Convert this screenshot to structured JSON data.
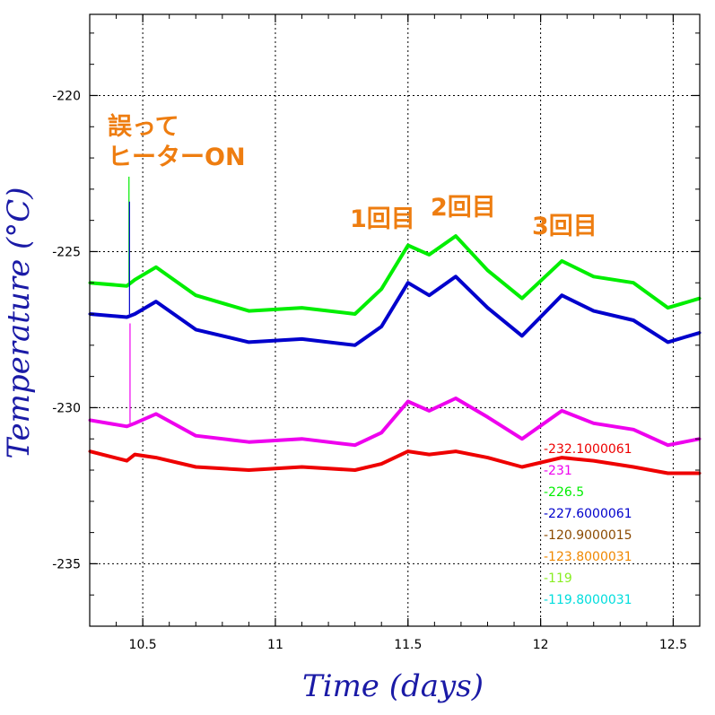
{
  "chart_data": {
    "type": "line",
    "title": "",
    "xlabel": "Time (days)",
    "ylabel": "Temperature (°C)",
    "xlim": [
      10.3,
      12.6
    ],
    "ylim": [
      -237,
      -217.4
    ],
    "xticks": [
      10.5,
      11,
      11.5,
      12,
      12.5
    ],
    "xtick_labels": [
      "10.5",
      "11",
      "11.5",
      "12",
      "12.5"
    ],
    "yticks": [
      -220,
      -225,
      -230,
      -235
    ],
    "ytick_labels": [
      "-220",
      "-225",
      "-230",
      "-235"
    ],
    "grid": true,
    "annotations": [
      {
        "lines": [
          "誤って",
          "ヒーターON"
        ],
        "x": 10.45,
        "y": -222.0
      },
      {
        "lines": [
          "1回目"
        ],
        "x": 11.5,
        "y": -224.0
      },
      {
        "lines": [
          "2回目"
        ],
        "x": 11.75,
        "y": -223.6
      },
      {
        "lines": [
          "3回目"
        ],
        "x": 12.1,
        "y": -224.3
      }
    ],
    "series": [
      {
        "color": "#00ee00",
        "x": [
          10.3,
          10.44,
          10.47,
          10.55,
          10.7,
          10.9,
          11.1,
          11.3,
          11.4,
          11.5,
          11.58,
          11.68,
          11.8,
          11.93,
          12.08,
          12.2,
          12.35,
          12.48,
          12.6
        ],
        "values": [
          -226.0,
          -226.1,
          -225.9,
          -225.5,
          -226.4,
          -226.9,
          -226.8,
          -227.0,
          -226.2,
          -224.8,
          -225.1,
          -224.5,
          -225.6,
          -226.5,
          -225.3,
          -225.8,
          -226.0,
          -226.8,
          -226.5
        ]
      },
      {
        "color": "#0000cc",
        "x": [
          10.3,
          10.44,
          10.47,
          10.55,
          10.7,
          10.9,
          11.1,
          11.3,
          11.4,
          11.5,
          11.58,
          11.68,
          11.8,
          11.93,
          12.08,
          12.2,
          12.35,
          12.48,
          12.6
        ],
        "values": [
          -227.0,
          -227.1,
          -227.0,
          -226.6,
          -227.5,
          -227.9,
          -227.8,
          -228.0,
          -227.4,
          -226.0,
          -226.4,
          -225.8,
          -226.8,
          -227.7,
          -226.4,
          -226.9,
          -227.2,
          -227.9,
          -227.6
        ]
      },
      {
        "color": "#ee00ee",
        "x": [
          10.3,
          10.44,
          10.47,
          10.55,
          10.7,
          10.9,
          11.1,
          11.3,
          11.4,
          11.5,
          11.58,
          11.68,
          11.8,
          11.93,
          12.08,
          12.2,
          12.35,
          12.48,
          12.6
        ],
        "values": [
          -230.4,
          -230.6,
          -230.5,
          -230.2,
          -230.9,
          -231.1,
          -231.0,
          -231.2,
          -230.8,
          -229.8,
          -230.1,
          -229.7,
          -230.3,
          -231.0,
          -230.1,
          -230.5,
          -230.7,
          -231.2,
          -231.0
        ]
      },
      {
        "color": "#ee0000",
        "x": [
          10.3,
          10.44,
          10.47,
          10.55,
          10.7,
          10.9,
          11.1,
          11.3,
          11.4,
          11.5,
          11.58,
          11.68,
          11.8,
          11.93,
          12.08,
          12.2,
          12.35,
          12.48,
          12.6
        ],
        "values": [
          -231.4,
          -231.7,
          -231.5,
          -231.6,
          -231.9,
          -232.0,
          -231.9,
          -232.0,
          -231.8,
          -231.4,
          -231.5,
          -231.4,
          -231.6,
          -231.9,
          -231.6,
          -231.7,
          -231.9,
          -232.1,
          -232.1
        ]
      }
    ],
    "spikes": [
      {
        "color": "#00ee00",
        "x": 10.448,
        "from": -226.0,
        "to": -222.6
      },
      {
        "color": "#0000cc",
        "x": 10.45,
        "from": -227.0,
        "to": -223.4
      },
      {
        "color": "#ee00ee",
        "x": 10.452,
        "from": -230.5,
        "to": -227.3
      }
    ],
    "legend": {
      "placement": "bottom-right",
      "entries": [
        {
          "label": "-232.1000061",
          "color": "#ee0000"
        },
        {
          "label": "-231",
          "color": "#ee00ee"
        },
        {
          "label": "-226.5",
          "color": "#00ee00"
        },
        {
          "label": "-227.6000061",
          "color": "#0000cc"
        },
        {
          "label": "-120.9000015",
          "color": "#8b4a00"
        },
        {
          "label": "-123.8000031",
          "color": "#f08800"
        },
        {
          "label": "-119",
          "color": "#88ee22"
        },
        {
          "label": "-119.8000031",
          "color": "#00dddd"
        }
      ]
    }
  }
}
